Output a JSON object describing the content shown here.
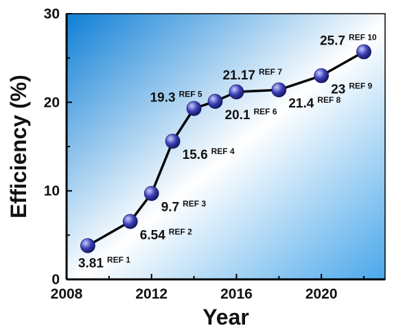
{
  "chart_data": {
    "type": "line",
    "title": "",
    "xlabel": "Year",
    "ylabel": "Efficiency (%)",
    "xlim": [
      2008,
      2023
    ],
    "ylim": [
      0,
      30
    ],
    "xticks": [
      2008,
      2012,
      2016,
      2020
    ],
    "yticks": [
      0,
      10,
      20,
      30
    ],
    "grid": false,
    "series": [
      {
        "points": [
          {
            "x": 2009,
            "y": 3.81,
            "label": "3.81",
            "ref": "REF 1",
            "label_pos": "below"
          },
          {
            "x": 2011,
            "y": 6.54,
            "label": "6.54",
            "ref": "REF 2",
            "label_pos": "below-right"
          },
          {
            "x": 2012,
            "y": 9.7,
            "label": "9.7",
            "ref": "REF 3",
            "label_pos": "below-right"
          },
          {
            "x": 2013,
            "y": 15.6,
            "label": "15.6",
            "ref": "REF 4",
            "label_pos": "below-right"
          },
          {
            "x": 2014,
            "y": 19.3,
            "label": "19.3",
            "ref": "REF 5",
            "label_pos": "above-left"
          },
          {
            "x": 2015,
            "y": 20.1,
            "label": "20.1",
            "ref": "REF 6",
            "label_pos": "below-right"
          },
          {
            "x": 2016,
            "y": 21.17,
            "label": "21.17",
            "ref": "REF 7",
            "label_pos": "above"
          },
          {
            "x": 2018,
            "y": 21.4,
            "label": "21.4",
            "ref": "REF 8",
            "label_pos": "below-right"
          },
          {
            "x": 2020,
            "y": 23,
            "label": "23",
            "ref": "REF 9",
            "label_pos": "below-right"
          },
          {
            "x": 2022,
            "y": 25.7,
            "label": "25.7",
            "ref": "REF 10",
            "label_pos": "above-left"
          }
        ]
      }
    ],
    "colors": {
      "marker": "#3a3fb5",
      "marker_highlight": "#c9ccff",
      "line": "#000000",
      "background_top_left": "#0f7fd6",
      "background_middle": "#ffffff",
      "background_bottom_right": "#4aa7ea"
    }
  }
}
